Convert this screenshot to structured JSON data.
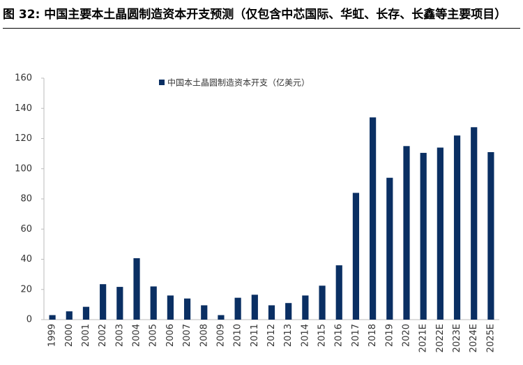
{
  "chart_data": {
    "type": "bar",
    "title": "图 32: 中国主要本土晶圆制造资本开支预测（仅包含中芯国际、华虹、长存、长鑫等主要项目）",
    "categories": [
      "1999",
      "2000",
      "2001",
      "2002",
      "2003",
      "2004",
      "2005",
      "2006",
      "2007",
      "2008",
      "2009",
      "2010",
      "2011",
      "2012",
      "2013",
      "2014",
      "2015",
      "2016",
      "2017",
      "2018",
      "2019",
      "2020",
      "2021E",
      "2022E",
      "2023E",
      "2024E",
      "2025E"
    ],
    "series": [
      {
        "name": "中国本土晶圆制造资本开支（亿美元）",
        "color": "#0a2f63",
        "values": [
          3,
          5.5,
          8.5,
          23.5,
          21.7,
          40.7,
          22,
          16,
          14,
          9.5,
          3,
          14.5,
          16.5,
          9.5,
          11,
          16,
          22.5,
          36,
          84,
          134,
          94,
          115,
          110.5,
          114,
          122,
          127.5,
          111
        ]
      }
    ],
    "ylim": [
      0,
      160
    ],
    "yticks": [
      0,
      20,
      40,
      60,
      80,
      100,
      120,
      140,
      160
    ],
    "grid": false
  }
}
